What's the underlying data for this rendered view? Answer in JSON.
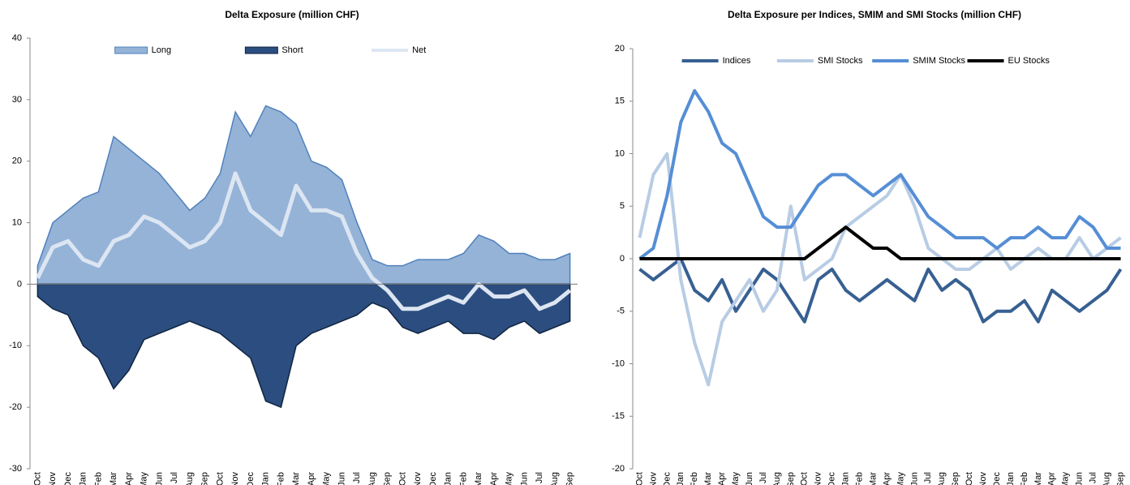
{
  "chart_data": [
    {
      "type": "area",
      "title": "Delta Exposure (million CHF)",
      "categories": [
        "Oct",
        "Nov",
        "Dec",
        "Jan",
        "Feb",
        "Mar",
        "Apr",
        "May",
        "Jun",
        "Jul",
        "Aug",
        "Sep",
        "Oct",
        "Nov",
        "Dec",
        "Jan",
        "Feb",
        "Mar",
        "Apr",
        "May",
        "Jun",
        "Jul",
        "Aug",
        "Sep",
        "Oct",
        "Nov",
        "Dec",
        "Jan",
        "Feb",
        "Mar",
        "Apr",
        "May",
        "Jun",
        "Jul",
        "Aug",
        "Sep"
      ],
      "series": [
        {
          "name": "Long",
          "kind": "area",
          "color": "#95b3d7",
          "values": [
            3,
            10,
            12,
            14,
            15,
            24,
            22,
            20,
            18,
            15,
            12,
            14,
            18,
            28,
            24,
            29,
            28,
            26,
            20,
            19,
            17,
            10,
            4,
            3,
            3,
            4,
            4,
            4,
            5,
            8,
            7,
            5,
            5,
            4,
            4,
            5
          ]
        },
        {
          "name": "Short",
          "kind": "area",
          "color": "#2c4d7f",
          "values": [
            -2,
            -4,
            -5,
            -10,
            -12,
            -17,
            -14,
            -9,
            -8,
            -7,
            -6,
            -7,
            -8,
            -10,
            -12,
            -19,
            -20,
            -10,
            -8,
            -7,
            -6,
            -5,
            -3,
            -4,
            -7,
            -8,
            -7,
            -6,
            -8,
            -8,
            -9,
            -7,
            -6,
            -8,
            -7,
            -6
          ]
        },
        {
          "name": "Net",
          "kind": "line",
          "color": "#dce6f2",
          "values": [
            1,
            6,
            7,
            4,
            3,
            7,
            8,
            11,
            10,
            8,
            6,
            7,
            10,
            18,
            12,
            10,
            8,
            16,
            12,
            12,
            11,
            5,
            1,
            -1,
            -4,
            -4,
            -3,
            -2,
            -3,
            0,
            -2,
            -2,
            -1,
            -4,
            -3,
            -1
          ]
        }
      ],
      "ylim": [
        -30,
        40
      ],
      "yticks": [
        -30,
        -20,
        -10,
        0,
        10,
        20,
        30,
        40
      ]
    },
    {
      "type": "line",
      "title": "Delta Exposure per Indices, SMIM and SMI Stocks (million CHF)",
      "categories": [
        "Oct",
        "Nov",
        "Dec",
        "Jan",
        "Feb",
        "Mar",
        "Apr",
        "May",
        "Jun",
        "Jul",
        "Aug",
        "Sep",
        "Oct",
        "Nov",
        "Dec",
        "Jan",
        "Feb",
        "Mar",
        "Apr",
        "May",
        "Jun",
        "Jul",
        "Aug",
        "Sep",
        "Oct",
        "Nov",
        "Dec",
        "Jan",
        "Feb",
        "Mar",
        "Apr",
        "May",
        "Jun",
        "Jul",
        "Aug",
        "Sep"
      ],
      "series": [
        {
          "name": "Indices",
          "color": "#376092",
          "values": [
            -1,
            -2,
            -1,
            0,
            -3,
            -4,
            -2,
            -5,
            -3,
            -1,
            -2,
            -4,
            -6,
            -2,
            -1,
            -3,
            -4,
            -3,
            -2,
            -3,
            -4,
            -1,
            -3,
            -2,
            -3,
            -6,
            -5,
            -5,
            -4,
            -6,
            -3,
            -4,
            -5,
            -4,
            -3,
            -1
          ]
        },
        {
          "name": "SMI Stocks",
          "color": "#b8cce4",
          "values": [
            2,
            8,
            10,
            -2,
            -8,
            -12,
            -6,
            -4,
            -2,
            -5,
            -3,
            5,
            -2,
            -1,
            0,
            3,
            4,
            5,
            6,
            8,
            5,
            1,
            0,
            -1,
            -1,
            0,
            1,
            -1,
            0,
            1,
            0,
            0,
            2,
            0,
            1,
            2
          ]
        },
        {
          "name": "SMIM Stocks",
          "color": "#558ed5",
          "values": [
            0,
            1,
            6,
            13,
            16,
            14,
            11,
            10,
            7,
            4,
            3,
            3,
            5,
            7,
            8,
            8,
            7,
            6,
            7,
            8,
            6,
            4,
            3,
            2,
            2,
            2,
            1,
            2,
            2,
            3,
            2,
            2,
            4,
            3,
            1,
            1
          ]
        },
        {
          "name": "EU Stocks",
          "color": "#000000",
          "values": [
            0,
            0,
            0,
            0,
            0,
            0,
            0,
            0,
            0,
            0,
            0,
            0,
            0,
            1,
            2,
            3,
            2,
            1,
            1,
            0,
            0,
            0,
            0,
            0,
            0,
            0,
            0,
            0,
            0,
            0,
            0,
            0,
            0,
            0,
            0,
            0
          ]
        }
      ],
      "ylim": [
        -20,
        20
      ],
      "yticks": [
        -20,
        -15,
        -10,
        -5,
        0,
        5,
        10,
        15,
        20
      ]
    }
  ]
}
